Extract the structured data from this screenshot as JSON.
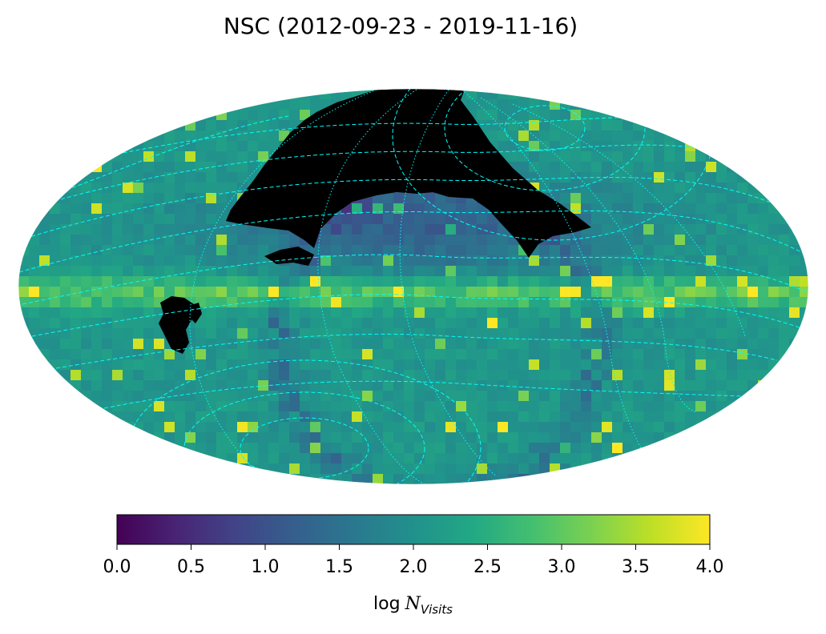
{
  "chart_data": {
    "type": "heatmap",
    "projection": "mollweide",
    "title": "NSC (2012-09-23 - 2019-11-16)",
    "colormap": "viridis",
    "no_data_color": "#000000",
    "colorbar": {
      "orientation": "horizontal",
      "range": [
        0.0,
        4.0
      ],
      "ticks": [
        "0.0",
        "0.5",
        "1.0",
        "1.5",
        "2.0",
        "2.5",
        "3.0",
        "3.5",
        "4.0"
      ],
      "label": {
        "prefix": "log",
        "symbol": "N",
        "subscript": "Visits"
      }
    },
    "overlays": [
      {
        "kind": "graticule",
        "style": "dashed",
        "color": "#00ffff"
      },
      {
        "kind": "graticule",
        "style": "dotted",
        "color": "#00ffff"
      }
    ],
    "grid": false,
    "legend": "none"
  }
}
